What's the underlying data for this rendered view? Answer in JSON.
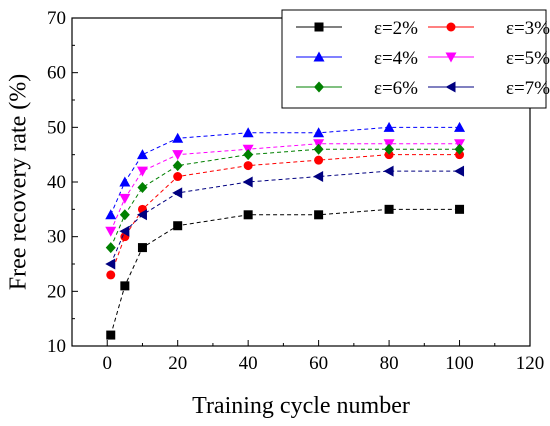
{
  "chart_data": {
    "type": "line",
    "xlabel": "Training cycle number",
    "ylabel": "Free recovery rate (%)",
    "xlim": [
      -10,
      120
    ],
    "ylim": [
      10,
      70
    ],
    "x_ticks": [
      0,
      20,
      40,
      60,
      80,
      100,
      120
    ],
    "y_ticks": [
      10,
      20,
      30,
      40,
      50,
      60,
      70
    ],
    "x": [
      1,
      5,
      10,
      20,
      40,
      60,
      80,
      100
    ],
    "legend_position": "top-right",
    "grid": false,
    "series": [
      {
        "name": "ε=2%",
        "color": "#000000",
        "marker": "square",
        "values": [
          12,
          21,
          28,
          32,
          34,
          34,
          35,
          35
        ]
      },
      {
        "name": "ε=3%",
        "color": "#ff0000",
        "marker": "circle",
        "values": [
          23,
          30,
          35,
          41,
          43,
          44,
          45,
          45
        ]
      },
      {
        "name": "ε=4%",
        "color": "#0000ff",
        "marker": "triangle-up",
        "values": [
          34,
          40,
          45,
          48,
          49,
          49,
          50,
          50
        ]
      },
      {
        "name": "ε=5%",
        "color": "#ff00ff",
        "marker": "triangle-down",
        "values": [
          31,
          37,
          42,
          45,
          46,
          47,
          47,
          47
        ]
      },
      {
        "name": "ε=6%",
        "color": "#008000",
        "marker": "diamond",
        "values": [
          28,
          34,
          39,
          43,
          45,
          46,
          46,
          46
        ]
      },
      {
        "name": "ε=7%",
        "color": "#000080",
        "marker": "triangle-left",
        "values": [
          25,
          31,
          34,
          38,
          40,
          41,
          42,
          42
        ]
      }
    ]
  }
}
